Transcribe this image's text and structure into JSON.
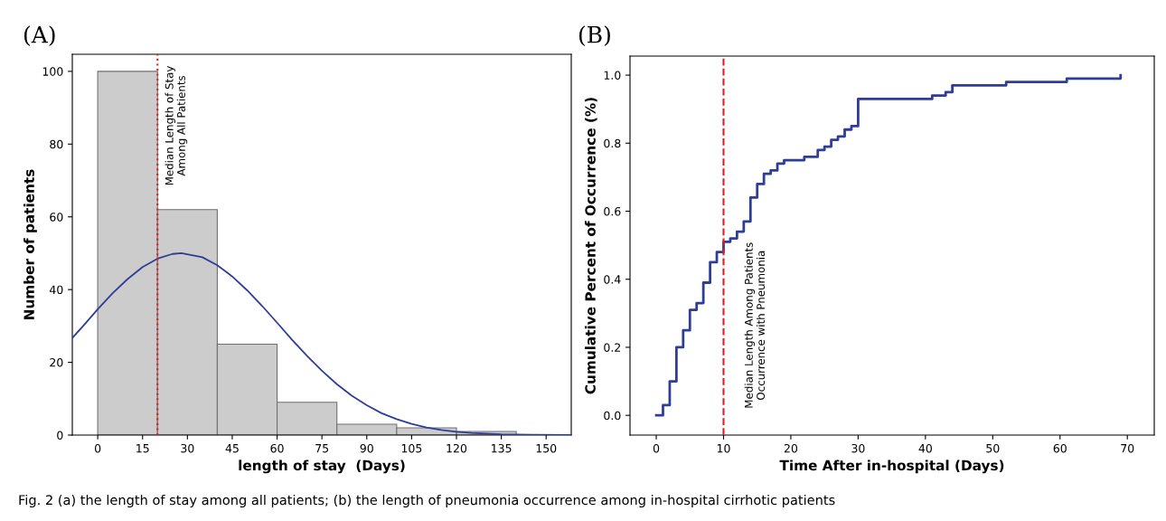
{
  "chart_data": [
    {
      "type": "histogram",
      "xlabel": "length of stay  (Days)",
      "ylabel": "Number of patients",
      "bins": [
        0,
        20,
        40,
        60,
        80,
        100,
        120,
        140
      ],
      "values": [
        100,
        62,
        25,
        9,
        3,
        2,
        1
      ],
      "color": "#cccccc",
      "series": [
        {
          "type": "line",
          "color": "#2e3d98",
          "x": [
            -8.5,
            -5,
            0,
            5,
            10,
            15,
            20,
            25,
            28,
            35,
            40,
            45,
            50,
            55,
            60,
            65,
            70,
            75,
            80,
            85,
            90,
            95,
            100,
            105,
            110,
            115,
            120,
            125,
            135,
            145,
            158
          ],
          "values": [
            26.7,
            29.9,
            34.6,
            39.0,
            42.9,
            46.2,
            48.5,
            49.8,
            50,
            48.9,
            46.7,
            43.6,
            39.8,
            35.5,
            30.9,
            26.2,
            21.8,
            17.7,
            14.0,
            10.8,
            8.2,
            6.0,
            4.4,
            3.1,
            2.1,
            1.4,
            0.9,
            0.6,
            0.2,
            0.1,
            0.0
          ]
        }
      ],
      "xlim": [
        -8.5,
        158.4
      ],
      "xticks": [
        0,
        15,
        30,
        45,
        60,
        75,
        90,
        105,
        120,
        135,
        150
      ],
      "ylim": [
        0,
        104.7
      ],
      "yticks": [
        0,
        20,
        40,
        60,
        80,
        100
      ],
      "grid": false,
      "ref_lines": [
        {
          "axis": "x",
          "value": 20,
          "label": "Median Length of Stay\nAmong All Patients",
          "color": "#e8191f",
          "line_style": "dotted"
        }
      ],
      "annotations": [
        "(A)",
        "Fig. 2 (a) the length of stay among all patients; (b) the length of pneumonia occurrence among in-hospital cirrhotic patients"
      ]
    },
    {
      "type": "step",
      "xlabel": "Time After in-hospital (Days)",
      "ylabel": "Cumulative Percent of Occurrence (%)",
      "series": [
        {
          "color": "#2e3d98",
          "x": [
            0,
            1,
            2,
            3,
            4,
            5,
            6,
            7,
            8,
            9,
            10,
            11,
            12,
            13,
            14,
            15,
            16,
            17,
            18,
            19,
            22,
            24,
            25,
            26,
            27,
            28,
            29,
            30,
            41,
            43,
            44,
            52,
            61,
            69
          ],
          "values": [
            0,
            0.03,
            0.1,
            0.2,
            0.25,
            0.31,
            0.33,
            0.39,
            0.45,
            0.48,
            0.51,
            0.52,
            0.54,
            0.57,
            0.64,
            0.68,
            0.71,
            0.72,
            0.74,
            0.75,
            0.76,
            0.78,
            0.79,
            0.81,
            0.82,
            0.84,
            0.85,
            0.93,
            0.94,
            0.95,
            0.97,
            0.98,
            0.99,
            1.0
          ]
        }
      ],
      "xlim": [
        -3.9,
        74
      ],
      "xticks": [
        0,
        10,
        20,
        30,
        40,
        50,
        60,
        70
      ],
      "ylim": [
        -0.058,
        1.056
      ],
      "yticks": [
        {
          "value": 0,
          "label": "0.0"
        },
        {
          "value": 0.2,
          "label": "0.2"
        },
        {
          "value": 0.4,
          "label": "0.4"
        },
        {
          "value": 0.6,
          "label": "0.6"
        },
        {
          "value": 0.8,
          "label": "0.8"
        },
        {
          "value": 1.0,
          "label": "1.0"
        }
      ],
      "grid": false,
      "ref_lines": [
        {
          "axis": "x",
          "value": 10,
          "label": "Median Length Among Patients\nOccurrence with Pneumonia",
          "color": "#e8191f",
          "line_style": "dashed"
        }
      ],
      "annotations": [
        "(B)"
      ]
    }
  ]
}
